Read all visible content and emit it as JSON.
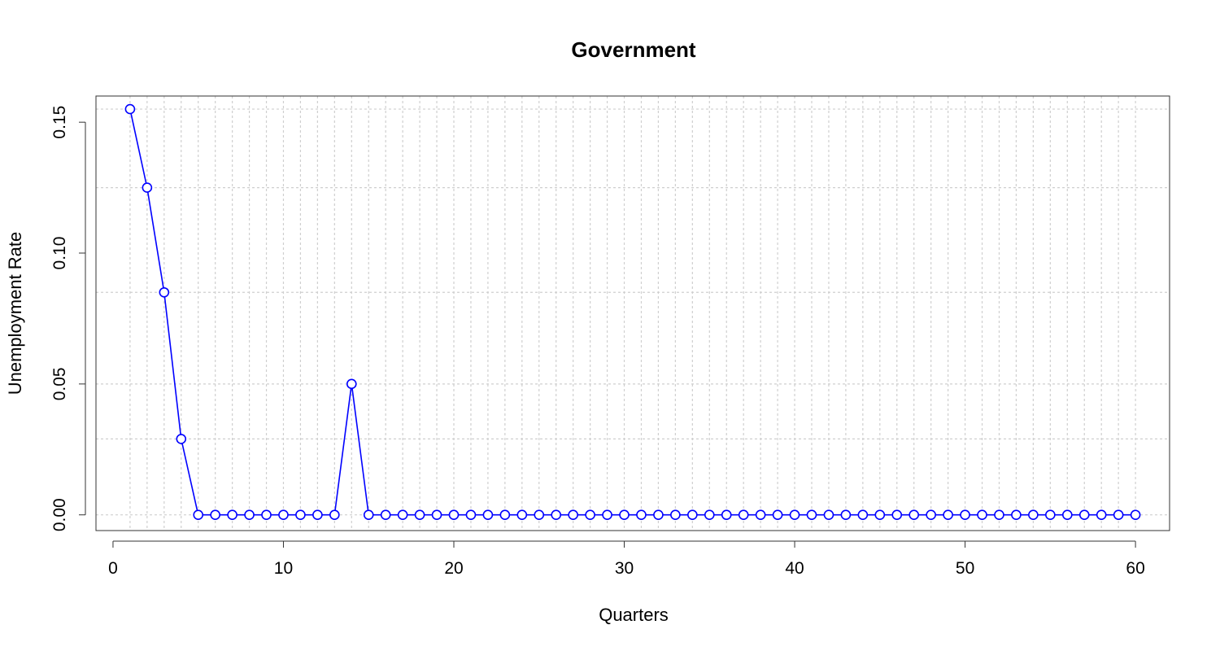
{
  "chart_data": {
    "type": "line",
    "title": "Government",
    "xlabel": "Quarters",
    "ylabel": "Unemployment Rate",
    "xlim": [
      -1,
      62
    ],
    "ylim": [
      -0.006,
      0.16
    ],
    "x_ticks": [
      0,
      10,
      20,
      30,
      40,
      50,
      60
    ],
    "x_tick_labels": [
      "0",
      "10",
      "20",
      "30",
      "40",
      "50",
      "60"
    ],
    "y_ticks": [
      0,
      0.05,
      0.1,
      0.15
    ],
    "y_tick_labels": [
      "0.00",
      "0.05",
      "0.10",
      "0.15"
    ],
    "grid": true,
    "x_gridlines": [
      1,
      2,
      3,
      4,
      5,
      6,
      7,
      8,
      9,
      10,
      11,
      12,
      13,
      14,
      15,
      16,
      17,
      18,
      19,
      20,
      21,
      22,
      23,
      24,
      25,
      26,
      27,
      28,
      29,
      30,
      31,
      32,
      33,
      34,
      35,
      36,
      37,
      38,
      39,
      40,
      41,
      42,
      43,
      44,
      45,
      46,
      47,
      48,
      49,
      50,
      51,
      52,
      53,
      54,
      55,
      56,
      57,
      58,
      59,
      60
    ],
    "y_gridlines": [
      0,
      0.029,
      0.05,
      0.085,
      0.125,
      0.155
    ],
    "series": [
      {
        "color": "#0000ff",
        "marker": "open-circle",
        "x": [
          1,
          2,
          3,
          4,
          5,
          6,
          7,
          8,
          9,
          10,
          11,
          12,
          13,
          14,
          15,
          16,
          17,
          18,
          19,
          20,
          21,
          22,
          23,
          24,
          25,
          26,
          27,
          28,
          29,
          30,
          31,
          32,
          33,
          34,
          35,
          36,
          37,
          38,
          39,
          40,
          41,
          42,
          43,
          44,
          45,
          46,
          47,
          48,
          49,
          50,
          51,
          52,
          53,
          54,
          55,
          56,
          57,
          58,
          59,
          60
        ],
        "y": [
          0.155,
          0.125,
          0.085,
          0.029,
          0,
          0,
          0,
          0,
          0,
          0,
          0,
          0,
          0,
          0.05,
          0,
          0,
          0,
          0,
          0,
          0,
          0,
          0,
          0,
          0,
          0,
          0,
          0,
          0,
          0,
          0,
          0,
          0,
          0,
          0,
          0,
          0,
          0,
          0,
          0,
          0,
          0,
          0,
          0,
          0,
          0,
          0,
          0,
          0,
          0,
          0,
          0,
          0,
          0,
          0,
          0,
          0,
          0,
          0,
          0,
          0
        ]
      }
    ]
  }
}
